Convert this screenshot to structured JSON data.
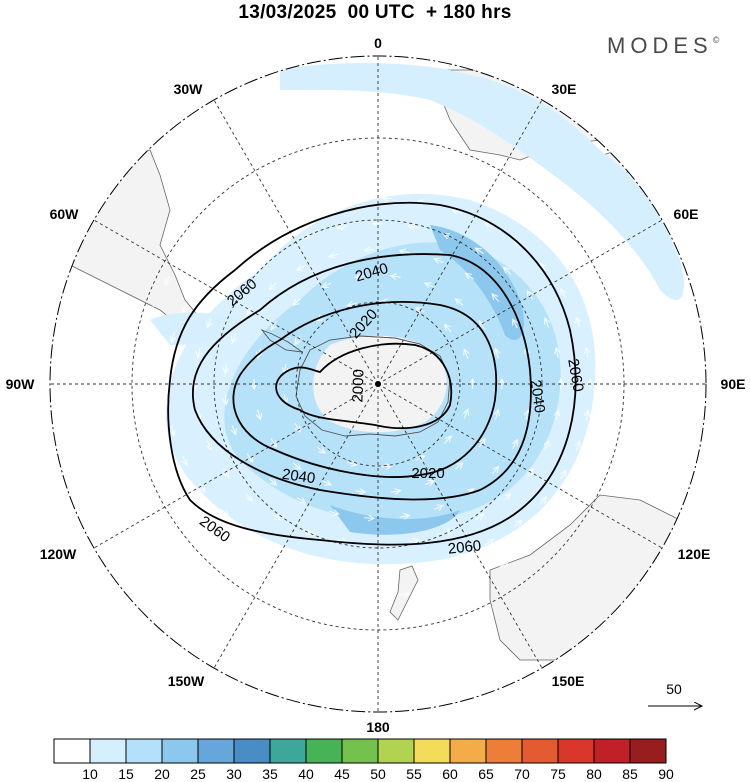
{
  "title": "13/03/2025  00 UTC  + 180 hrs",
  "brand": "MODES",
  "brand_mark": "©",
  "lon_labels": {
    "l0": "0",
    "l30E": "30E",
    "l60E": "60E",
    "l90E": "90E",
    "l120E": "120E",
    "l150E": "150E",
    "l180": "180",
    "l150W": "150W",
    "l120W": "120W",
    "l90W": "90W",
    "l60W": "60W",
    "l30W": "30W"
  },
  "contour_labels": {
    "c2000": "2000",
    "c2020a": "2020",
    "c2020b": "2020",
    "c2040a": "2040",
    "c2040b": "2040",
    "c2040c": "2040",
    "c2060a": "2060",
    "c2060b": "2060",
    "c2060c": "2060",
    "c2060d": "2060"
  },
  "reference_vector": {
    "label": "50"
  },
  "colorbar": {
    "ticks": [
      "10",
      "15",
      "20",
      "25",
      "30",
      "35",
      "40",
      "45",
      "50",
      "55",
      "60",
      "65",
      "70",
      "75",
      "80",
      "85",
      "90"
    ],
    "colors": [
      "#ffffff",
      "#d6efff",
      "#b4e0f9",
      "#8cc8ee",
      "#67a6da",
      "#4a8cc4",
      "#3ea79b",
      "#46b456",
      "#74c14d",
      "#b1d34f",
      "#f2dc5a",
      "#f3ac47",
      "#ed7e37",
      "#e45a31",
      "#d9372c",
      "#c02027",
      "#981d1f"
    ]
  }
}
